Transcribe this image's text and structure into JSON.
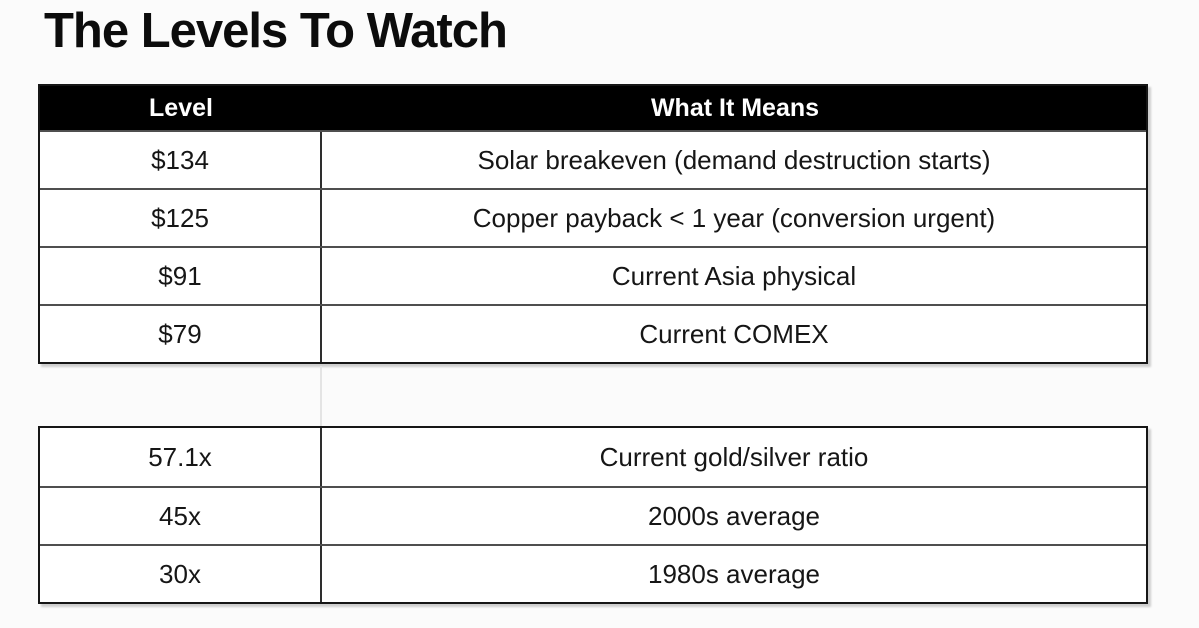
{
  "page": {
    "title": "The Levels To Watch"
  },
  "colors": {
    "page_bg": "#fbfbfb",
    "header_bg": "#000000",
    "header_text": "#ffffff",
    "cell_bg": "#ffffff",
    "cell_text": "#161616",
    "border": "#2e2e2e",
    "faint_divider": "#e4e4e4"
  },
  "levels_table": {
    "headers": [
      "Level",
      "What It Means"
    ],
    "rows": [
      [
        "$134",
        "Solar breakeven (demand destruction starts)"
      ],
      [
        "$125",
        "Copper payback < 1 year (conversion urgent)"
      ],
      [
        "$91",
        "Current Asia physical"
      ],
      [
        "$79",
        "Current COMEX"
      ]
    ]
  },
  "ratio_table": {
    "rows": [
      [
        "57.1x",
        "Current gold/silver ratio"
      ],
      [
        "45x",
        "2000s average"
      ],
      [
        "30x",
        "1980s average"
      ]
    ]
  }
}
